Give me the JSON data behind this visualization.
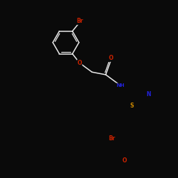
{
  "background_color": "#0a0a0a",
  "bond_color": "#e8e8e8",
  "atom_colors": {
    "Br": "#cc2200",
    "O": "#cc2200",
    "N": "#2222dd",
    "S": "#cc8800",
    "C": "#e8e8e8",
    "H": "#e8e8e8"
  },
  "figsize": [
    2.5,
    2.5
  ],
  "dpi": 100
}
